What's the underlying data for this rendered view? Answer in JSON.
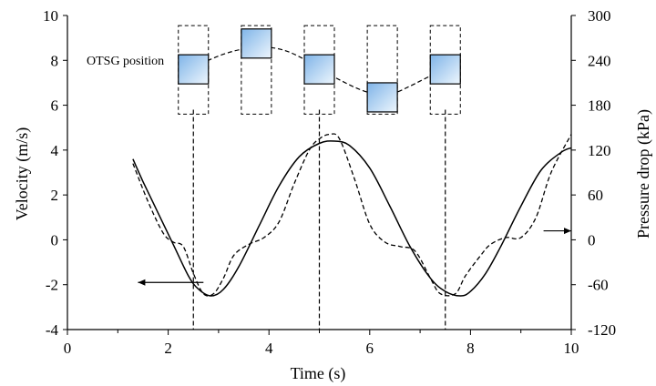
{
  "chart_data": {
    "type": "line",
    "xlabel": "Time (s)",
    "ylabel": "Velocity (m/s)",
    "y2label": "Pressure drop (kPa)",
    "xlim": [
      0,
      10
    ],
    "ylim": [
      -4,
      10
    ],
    "y2lim": [
      -120,
      300
    ],
    "x_ticks": [
      "0",
      "2",
      "4",
      "6",
      "8",
      "10"
    ],
    "y_ticks": [
      "-4",
      "-2",
      "0",
      "2",
      "4",
      "6",
      "8",
      "10"
    ],
    "y2_ticks": [
      "-120",
      "-60",
      "0",
      "60",
      "120",
      "180",
      "240",
      "300"
    ],
    "grid": false,
    "series": [
      {
        "style": "solid",
        "axis": "left",
        "x": [
          1.3,
          1.5,
          1.8,
          2.1,
          2.4,
          2.6,
          2.85,
          3.1,
          3.4,
          3.8,
          4.2,
          4.6,
          5.0,
          5.3,
          5.6,
          6.0,
          6.4,
          6.8,
          7.2,
          7.5,
          7.8,
          8.0,
          8.3,
          8.6,
          9.0,
          9.4,
          9.8,
          10.0
        ],
        "values": [
          3.6,
          2.6,
          1.2,
          -0.2,
          -1.6,
          -2.2,
          -2.5,
          -2.2,
          -1.2,
          0.6,
          2.4,
          3.7,
          4.3,
          4.4,
          4.2,
          3.2,
          1.5,
          -0.3,
          -1.7,
          -2.3,
          -2.5,
          -2.3,
          -1.5,
          -0.3,
          1.5,
          3.1,
          3.9,
          4.1
        ]
      },
      {
        "style": "dashed",
        "axis": "right",
        "x": [
          1.3,
          1.6,
          1.9,
          2.1,
          2.3,
          2.5,
          2.7,
          2.9,
          3.1,
          3.3,
          3.6,
          3.9,
          4.2,
          4.5,
          4.8,
          5.0,
          5.2,
          5.4,
          5.7,
          6.0,
          6.3,
          6.6,
          6.9,
          7.2,
          7.4,
          7.7,
          7.9,
          8.2,
          8.4,
          8.7,
          9.0,
          9.3,
          9.6,
          10.0
        ],
        "values": [
          102,
          51,
          9,
          -3,
          -9,
          -45,
          -72,
          -72,
          -51,
          -21,
          -6,
          3,
          24,
          75,
          120,
          135,
          141,
          135,
          81,
          21,
          -3,
          -9,
          -15,
          -51,
          -72,
          -72,
          -48,
          -21,
          -6,
          3,
          3,
          30,
          90,
          141
        ]
      }
    ],
    "annotations": {
      "otsg_label": "OTSG position",
      "otsg_x": [
        2.5,
        3.75,
        5.0,
        6.25,
        7.5
      ],
      "otsg_y": [
        7.6,
        8.75,
        7.6,
        6.35,
        7.6
      ],
      "otsg_trace": {
        "x": [
          2.4,
          2.8,
          3.2,
          3.6,
          3.9,
          4.3,
          4.7,
          5.0,
          5.3,
          5.7,
          6.0,
          6.25,
          6.5,
          6.8,
          7.2,
          7.5
        ],
        "y": [
          7.5,
          8.0,
          8.35,
          8.55,
          8.6,
          8.45,
          8.05,
          7.6,
          7.25,
          6.8,
          6.55,
          6.45,
          6.55,
          6.85,
          7.3,
          7.6
        ]
      },
      "vertical_lines_x": [
        2.5,
        5.0,
        7.5
      ],
      "left_arrow": {
        "from": [
          2.7,
          -1.9
        ],
        "to": [
          1.4,
          -1.9
        ]
      },
      "right_arrow": {
        "from": [
          9.45,
          0.4
        ],
        "to": [
          10.0,
          0.4
        ]
      }
    }
  }
}
